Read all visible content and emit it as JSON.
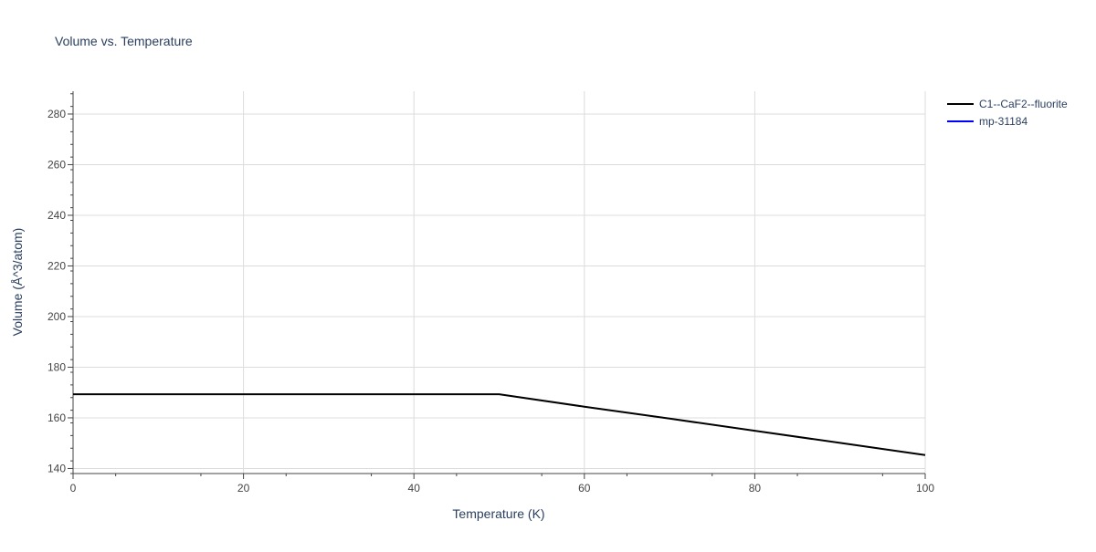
{
  "chart_data": {
    "type": "line",
    "title": "Volume vs. Temperature",
    "xlabel": "Temperature (K)",
    "ylabel": "Volume (Å^3/atom)",
    "xlim": [
      0,
      100
    ],
    "ylim": [
      138,
      289
    ],
    "x_ticks": [
      0,
      20,
      40,
      60,
      80,
      100
    ],
    "y_ticks": [
      140,
      160,
      180,
      200,
      220,
      240,
      260,
      280
    ],
    "grid": true,
    "legend_position": "top-right",
    "series": [
      {
        "name": "C1--CaF2--fluorite",
        "color": "#000000",
        "x": [
          0,
          10,
          20,
          30,
          40,
          50,
          60,
          70,
          80,
          90,
          100
        ],
        "y": [
          169.3,
          169.3,
          169.3,
          169.3,
          169.3,
          169.3,
          164.4,
          159.7,
          154.9,
          150.1,
          145.3
        ]
      },
      {
        "name": "mp-31184",
        "color": "#0000ff",
        "x": [],
        "y": []
      }
    ]
  }
}
